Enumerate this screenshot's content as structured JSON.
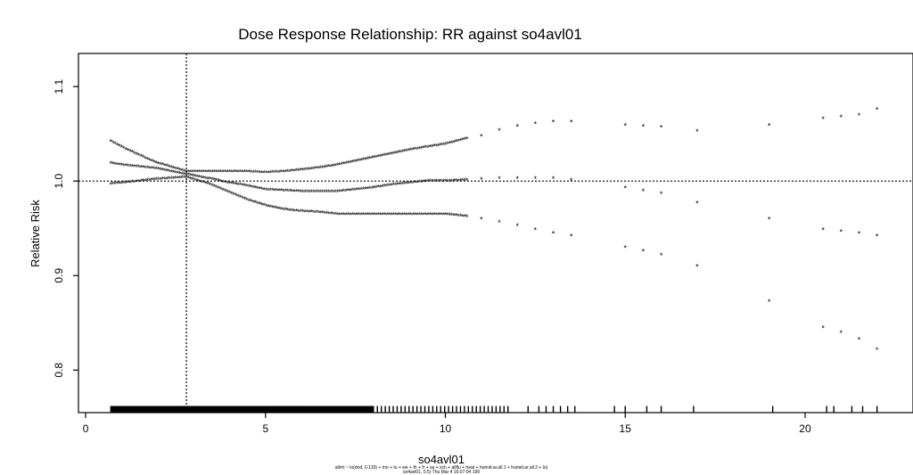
{
  "chart_data": {
    "type": "scatter",
    "title": "Dose Response Relationship: RR against so4avl01",
    "xlabel": "so4avl01",
    "ylabel": "Relative Risk",
    "xlim": [
      -0.2,
      23.0
    ],
    "ylim": [
      0.755,
      1.135
    ],
    "x_ticks": [
      0,
      5,
      10,
      15,
      20
    ],
    "x_tick_labels": [
      "0",
      "5",
      "10",
      "15",
      "20"
    ],
    "y_ticks": [
      0.8,
      0.9,
      1.0,
      1.1
    ],
    "y_tick_labels": [
      "0.8",
      "0.9",
      "1.0",
      "1.1"
    ],
    "reference_line_y": 1.0,
    "reference_line_x": 2.8,
    "marker": "*",
    "caption_line1": "allrm ~ lo(dod, 0.133) + mo + tu + we + th + fr + sa + sch + allflu + heat + humid.ar.all.1 + humid.ar.all.2 + lo(",
    "caption_line2": "so4avl01, 0.5) Thu Mar 4 16:07:04 199",
    "series": [
      {
        "name": "",
        "x": [
          0.7,
          1.0,
          1.5,
          2.0,
          2.8,
          3.5,
          4.0,
          4.5,
          5.0,
          5.5,
          6.0,
          6.5,
          7.0,
          7.5,
          8.0,
          8.5,
          9.0,
          9.5,
          10.0,
          10.5,
          11.0,
          11.5,
          12.0,
          12.5,
          13.0,
          13.5,
          15.0,
          15.5,
          16.0,
          17.0,
          19.0,
          20.5,
          21.0,
          21.5,
          22.0
        ],
        "values": [
          1.042,
          1.036,
          1.027,
          1.019,
          1.01,
          1.01,
          1.01,
          1.01,
          1.009,
          1.01,
          1.012,
          1.014,
          1.017,
          1.021,
          1.025,
          1.029,
          1.033,
          1.036,
          1.039,
          1.044,
          1.048,
          1.054,
          1.058,
          1.061,
          1.063,
          1.063,
          1.059,
          1.058,
          1.057,
          1.053,
          1.059,
          1.066,
          1.068,
          1.07,
          1.076
        ]
      },
      {
        "name": "",
        "x": [
          0.7,
          1.0,
          1.5,
          2.0,
          2.8,
          3.5,
          4.0,
          4.5,
          5.0,
          5.5,
          6.0,
          6.5,
          7.0,
          7.5,
          8.0,
          8.5,
          9.0,
          9.5,
          10.0,
          10.5,
          11.0,
          11.5,
          12.0,
          12.5,
          13.0,
          13.5,
          15.0,
          15.5,
          16.0,
          17.0,
          19.0,
          20.5,
          21.0,
          21.5,
          22.0
        ],
        "values": [
          1.019,
          1.017,
          1.015,
          1.013,
          1.007,
          1.002,
          0.998,
          0.995,
          0.991,
          0.99,
          0.989,
          0.989,
          0.989,
          0.991,
          0.993,
          0.996,
          0.998,
          1.0,
          1.0,
          1.001,
          1.002,
          1.003,
          1.003,
          1.003,
          1.003,
          1.001,
          0.993,
          0.99,
          0.987,
          0.977,
          0.96,
          0.949,
          0.947,
          0.945,
          0.942
        ]
      },
      {
        "name": "",
        "x": [
          0.7,
          1.0,
          1.5,
          2.0,
          2.8,
          3.5,
          4.0,
          4.5,
          5.0,
          5.5,
          6.0,
          6.5,
          7.0,
          7.5,
          8.0,
          8.5,
          9.0,
          9.5,
          10.0,
          10.5,
          11.0,
          11.5,
          12.0,
          12.5,
          13.0,
          13.5,
          15.0,
          15.5,
          16.0,
          17.0,
          19.0,
          20.5,
          21.0,
          21.5,
          22.0
        ],
        "values": [
          0.997,
          0.998,
          1.0,
          1.002,
          1.004,
          0.996,
          0.988,
          0.98,
          0.974,
          0.97,
          0.968,
          0.967,
          0.965,
          0.965,
          0.965,
          0.965,
          0.965,
          0.965,
          0.965,
          0.963,
          0.96,
          0.957,
          0.953,
          0.949,
          0.945,
          0.942,
          0.93,
          0.926,
          0.922,
          0.91,
          0.873,
          0.845,
          0.84,
          0.833,
          0.822
        ]
      }
    ]
  }
}
